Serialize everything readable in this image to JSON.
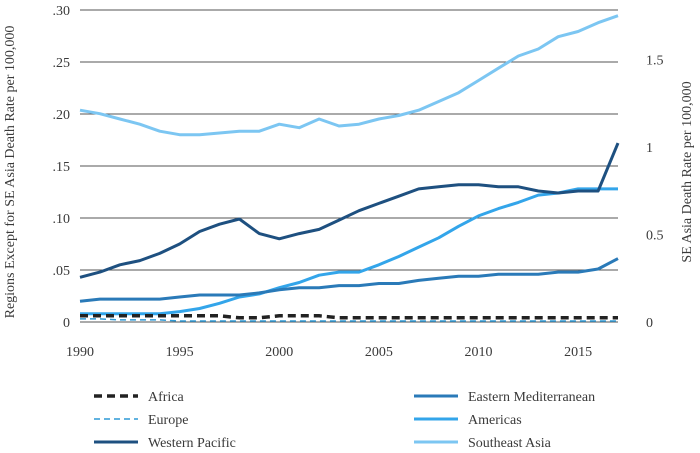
{
  "chart_data": {
    "type": "line",
    "title": "",
    "xlabel": "",
    "ylabel_left": "Regions Except for SE Asia Death Rate per 100,000",
    "ylabel_right": "SE Asia Death Rate per 100,000",
    "xlim": [
      1990,
      2017
    ],
    "ylim_left": [
      0,
      0.3
    ],
    "ylim_right": [
      0,
      1.7826
    ],
    "x_ticks": [
      1990,
      1995,
      2000,
      2005,
      2010,
      2015
    ],
    "x_tick_labels": [
      "1990",
      "1995",
      "2000",
      "2005",
      "2010",
      "2015"
    ],
    "y_left_ticks": [
      0,
      0.05,
      0.1,
      0.15,
      0.2,
      0.25,
      0.3
    ],
    "y_left_tick_labels": [
      "0",
      ".05",
      ".10",
      ".15",
      ".20",
      ".25",
      ".30"
    ],
    "y_right_ticks": [
      0,
      0.5,
      1,
      1.5
    ],
    "y_right_tick_labels": [
      "0",
      "0.5",
      "1",
      "1.5"
    ],
    "grid": true,
    "legend_position": "bottom",
    "x": [
      1990,
      1991,
      1992,
      1993,
      1994,
      1995,
      1996,
      1997,
      1998,
      1999,
      2000,
      2001,
      2002,
      2003,
      2004,
      2005,
      2006,
      2007,
      2008,
      2009,
      2010,
      2011,
      2012,
      2013,
      2014,
      2015,
      2016,
      2017
    ],
    "series": [
      {
        "name": "Africa",
        "axis": "left",
        "color": "#222222",
        "dash": "dashed",
        "width": 3.5,
        "values": [
          0.006,
          0.006,
          0.006,
          0.006,
          0.006,
          0.006,
          0.006,
          0.006,
          0.004,
          0.004,
          0.006,
          0.006,
          0.006,
          0.004,
          0.004,
          0.004,
          0.004,
          0.004,
          0.004,
          0.004,
          0.004,
          0.004,
          0.004,
          0.004,
          0.004,
          0.004,
          0.004,
          0.004
        ]
      },
      {
        "name": "Europe",
        "axis": "left",
        "color": "#2f9ad6",
        "dash": "dashed",
        "width": 1.5,
        "values": [
          0.003,
          0.003,
          0.002,
          0.002,
          0.002,
          0.001,
          0.001,
          0.001,
          0.001,
          0.001,
          0.001,
          0.001,
          0.001,
          0.001,
          0.001,
          0.001,
          0.001,
          0.001,
          0.001,
          0.001,
          0.001,
          0.001,
          0.001,
          0.001,
          0.001,
          0.001,
          0.001,
          0.001
        ]
      },
      {
        "name": "Western Pacific",
        "axis": "left",
        "color": "#1e5080",
        "dash": "solid",
        "width": 3,
        "values": [
          0.043,
          0.048,
          0.055,
          0.059,
          0.066,
          0.075,
          0.087,
          0.094,
          0.099,
          0.085,
          0.08,
          0.085,
          0.089,
          0.098,
          0.107,
          0.114,
          0.121,
          0.128,
          0.13,
          0.132,
          0.132,
          0.13,
          0.13,
          0.126,
          0.124,
          0.126,
          0.126,
          0.172
        ]
      },
      {
        "name": "Eastern Mediterranean",
        "axis": "left",
        "color": "#2a7ab8",
        "dash": "solid",
        "width": 3,
        "values": [
          0.02,
          0.022,
          0.022,
          0.022,
          0.022,
          0.024,
          0.026,
          0.026,
          0.026,
          0.028,
          0.031,
          0.033,
          0.033,
          0.035,
          0.035,
          0.037,
          0.037,
          0.04,
          0.042,
          0.044,
          0.044,
          0.046,
          0.046,
          0.046,
          0.048,
          0.048,
          0.051,
          0.061
        ]
      },
      {
        "name": "Americas",
        "axis": "left",
        "color": "#33a5ea",
        "dash": "solid",
        "width": 3,
        "values": [
          0.008,
          0.008,
          0.008,
          0.008,
          0.008,
          0.01,
          0.013,
          0.018,
          0.024,
          0.027,
          0.033,
          0.038,
          0.045,
          0.048,
          0.048,
          0.055,
          0.063,
          0.072,
          0.081,
          0.092,
          0.102,
          0.109,
          0.115,
          0.122,
          0.124,
          0.128,
          0.128,
          0.128
        ]
      },
      {
        "name": "Southeast Asia",
        "axis": "right",
        "color": "#7cc6f2",
        "dash": "solid",
        "width": 3,
        "values": [
          1.21,
          1.19,
          1.16,
          1.13,
          1.09,
          1.07,
          1.07,
          1.08,
          1.09,
          1.09,
          1.13,
          1.11,
          1.16,
          1.12,
          1.13,
          1.16,
          1.18,
          1.21,
          1.26,
          1.31,
          1.38,
          1.45,
          1.52,
          1.56,
          1.63,
          1.66,
          1.71,
          1.75
        ]
      }
    ]
  }
}
